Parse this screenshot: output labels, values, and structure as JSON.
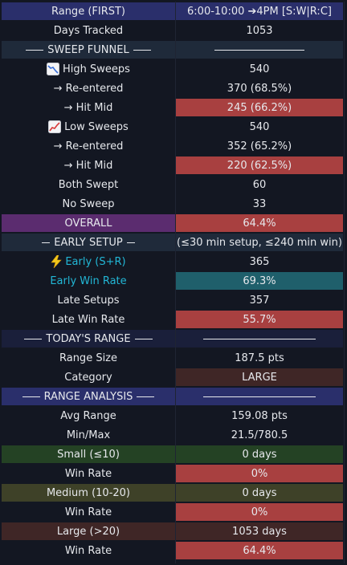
{
  "colors": {
    "background": "#131722",
    "header_bg": "#2a2f6b",
    "section_bg": "#1f2a3a",
    "section_dark_bg": "#1a1f3a",
    "red_cell": "#a84040",
    "purple_cell": "#5b2c6f",
    "teal_cell": "#1f5f6b",
    "green_cell": "#244224",
    "olive_cell": "#3e4128",
    "maroon_cell": "#3f2626",
    "cyan_text": "#22b7d6"
  },
  "rows": [
    {
      "label": "Range (FIRST)",
      "value": "6:00-10:00 ➔4PM [S:W|R:C]"
    },
    {
      "label": "Days Tracked",
      "value": "1053"
    },
    {
      "label": "SWEEP FUNNEL",
      "value": ""
    },
    {
      "label": "High Sweeps",
      "value": "540",
      "icon": "chart-decreasing-icon"
    },
    {
      "label": "→ Re-entered",
      "value": "370 (68.5%)"
    },
    {
      "label": "→ Hit Mid",
      "value": "245 (66.2%)"
    },
    {
      "label": "Low Sweeps",
      "value": "540",
      "icon": "chart-increasing-icon"
    },
    {
      "label": "→ Re-entered",
      "value": "352 (65.2%)"
    },
    {
      "label": "→ Hit Mid",
      "value": "220 (62.5%)"
    },
    {
      "label": "Both Swept",
      "value": "60"
    },
    {
      "label": "No Sweep",
      "value": "33"
    },
    {
      "label": "OVERALL",
      "value": "64.4%"
    },
    {
      "label": "EARLY SETUP",
      "value": "(≤30 min setup, ≤240 min win)"
    },
    {
      "label": "Early (S+R)",
      "value": "365",
      "icon": "lightning-icon"
    },
    {
      "label": "Early Win Rate",
      "value": "69.3%"
    },
    {
      "label": "Late Setups",
      "value": "357"
    },
    {
      "label": "Late Win Rate",
      "value": "55.7%"
    },
    {
      "label": "TODAY'S RANGE",
      "value": ""
    },
    {
      "label": "Range Size",
      "value": "187.5 pts"
    },
    {
      "label": "Category",
      "value": "LARGE"
    },
    {
      "label": "RANGE ANALYSIS",
      "value": ""
    },
    {
      "label": "Avg Range",
      "value": "159.08 pts"
    },
    {
      "label": "Min/Max",
      "value": "21.5/780.5"
    },
    {
      "label": "Small (≤10)",
      "value": "0 days"
    },
    {
      "label": "Win Rate",
      "value": "0%"
    },
    {
      "label": "Medium (10-20)",
      "value": "0 days"
    },
    {
      "label": "Win Rate",
      "value": "0%"
    },
    {
      "label": "Large (>20)",
      "value": "1053 days"
    },
    {
      "label": "Win Rate",
      "value": "64.4%"
    }
  ]
}
